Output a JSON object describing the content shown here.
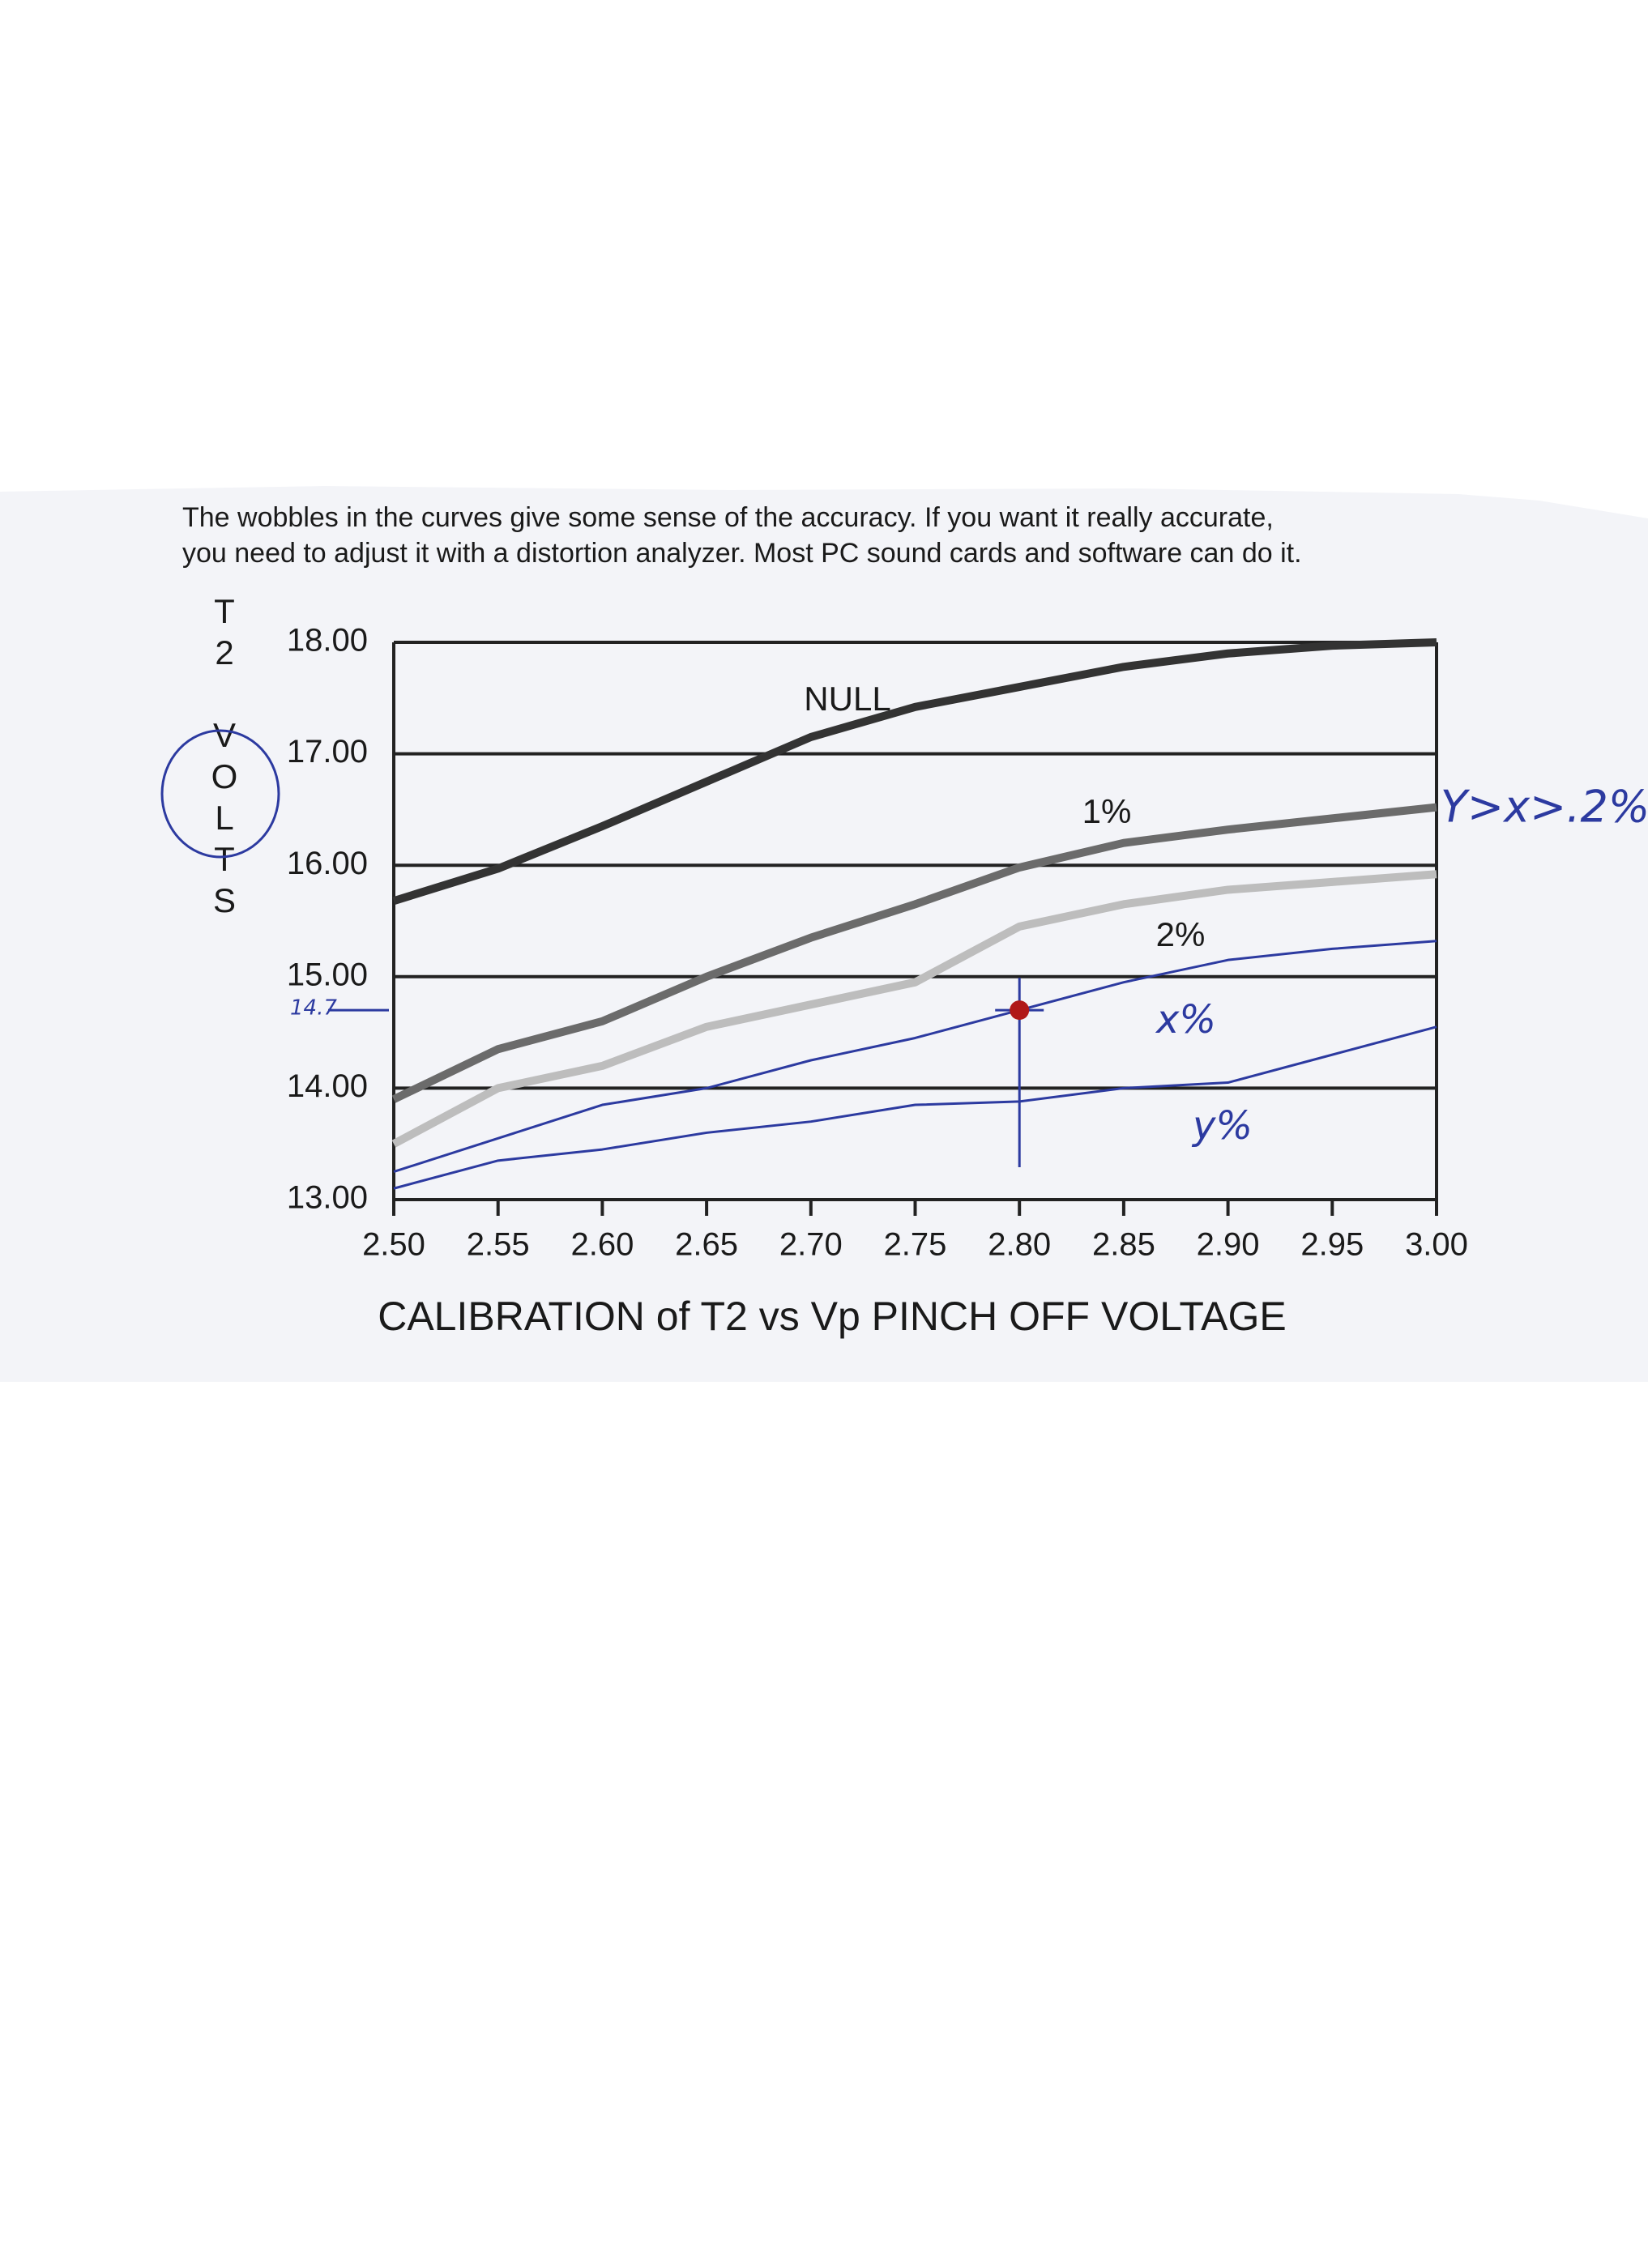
{
  "caption": [
    "The wobbles in the curves give some sense of the accuracy.  If you want it really accurate,",
    "you need to adjust it with a distortion analyzer.  Most PC sound cards and software can do it."
  ],
  "chart_data": {
    "type": "line",
    "title": "CALIBRATION of T2 vs Vp PINCH OFF VOLTAGE",
    "ylabel": "T2 VOLTS",
    "x": [
      2.5,
      2.55,
      2.6,
      2.65,
      2.7,
      2.75,
      2.8,
      2.85,
      2.9,
      2.95,
      3.0
    ],
    "series": [
      {
        "name": "NULL",
        "color": "#333333",
        "values": [
          15.68,
          15.97,
          16.35,
          16.75,
          17.15,
          17.42,
          17.6,
          17.78,
          17.9,
          17.97,
          18.0
        ]
      },
      {
        "name": "1%",
        "color": "#6b6b6b",
        "values": [
          13.9,
          14.35,
          14.6,
          15.0,
          15.35,
          15.65,
          15.98,
          16.2,
          16.32,
          16.42,
          16.52
        ]
      },
      {
        "name": "2%",
        "color": "#bdbdbd",
        "values": [
          13.5,
          14.0,
          14.2,
          14.55,
          14.75,
          14.95,
          15.45,
          15.65,
          15.78,
          15.85,
          15.92
        ]
      },
      {
        "name": "x%",
        "color": "#2c3aa0",
        "values": [
          13.25,
          13.55,
          13.85,
          14.0,
          14.25,
          14.45,
          14.7,
          14.95,
          15.15,
          15.25,
          15.32
        ]
      },
      {
        "name": "y%",
        "color": "#2c3aa0",
        "values": [
          13.1,
          13.35,
          13.45,
          13.6,
          13.7,
          13.85,
          13.88,
          14.0,
          14.05,
          14.3,
          14.55
        ]
      }
    ],
    "xlim": [
      2.5,
      3.0
    ],
    "xticks": [
      {
        "value": 2.5,
        "label": "2.50"
      },
      {
        "value": 2.55,
        "label": "2.55"
      },
      {
        "value": 2.6,
        "label": "2.60"
      },
      {
        "value": 2.65,
        "label": "2.65"
      },
      {
        "value": 2.7,
        "label": "2.70"
      },
      {
        "value": 2.75,
        "label": "2.75"
      },
      {
        "value": 2.8,
        "label": "2.80"
      },
      {
        "value": 2.85,
        "label": "2.85"
      },
      {
        "value": 2.9,
        "label": "2.90"
      },
      {
        "value": 2.95,
        "label": "2.95"
      },
      {
        "value": 3.0,
        "label": "3.00"
      }
    ],
    "ylim": [
      13,
      18
    ],
    "yticks": [
      {
        "value": 13,
        "label": "13.00"
      },
      {
        "value": 14,
        "label": "14.00"
      },
      {
        "value": 15,
        "label": "15.00"
      },
      {
        "value": 16,
        "label": "16.00"
      },
      {
        "value": 17,
        "label": "17.00"
      },
      {
        "value": 18,
        "label": "18.00"
      }
    ],
    "grid": true,
    "marker": {
      "x": 2.8,
      "y": 14.7,
      "color": "#b01818"
    },
    "annotation": "Y>x>.2%"
  }
}
